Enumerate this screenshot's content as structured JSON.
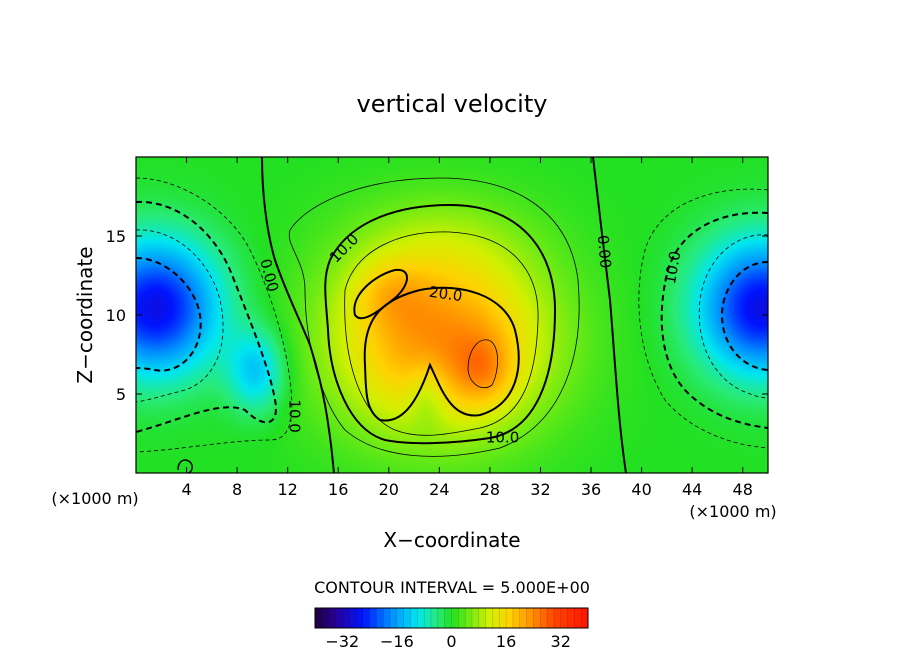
{
  "chart_data": {
    "type": "contour",
    "title": "vertical velocity",
    "xlabel": "X−coordinate",
    "ylabel": "Z−coordinate",
    "x_unit_left": "(×1000 m)",
    "x_unit_right": "(×1000 m)",
    "xlim": [
      0,
      50
    ],
    "ylim": [
      0,
      20
    ],
    "xticks": [
      4,
      8,
      12,
      16,
      20,
      24,
      28,
      32,
      36,
      40,
      44,
      48
    ],
    "yticks": [
      5,
      10,
      15
    ],
    "contour_interval_text": "CONTOUR INTERVAL = 5.000E+00",
    "contour_interval": 5.0,
    "contour_labels": [
      {
        "x": 10.5,
        "z": 12.5,
        "text": "0.00",
        "rotate": 75
      },
      {
        "x": 37.0,
        "z": 14.0,
        "text": "0.00",
        "rotate": 85
      },
      {
        "x": 16.5,
        "z": 14.2,
        "text": "10.0",
        "rotate": -45
      },
      {
        "x": 24.5,
        "z": 11.3,
        "text": "20.0",
        "rotate": 8
      },
      {
        "x": 29.0,
        "z": 2.2,
        "text": "10.0",
        "rotate": 0
      },
      {
        "x": 12.5,
        "z": 3.6,
        "text": "10.0",
        "rotate": 90
      },
      {
        "x": 42.5,
        "z": 13.0,
        "text": "10.0",
        "rotate": -80
      }
    ],
    "colorbar": {
      "range": [
        -40,
        40
      ],
      "ticks": [
        -32,
        -16,
        0,
        16,
        32
      ],
      "tick_labels": [
        "−32",
        "−16",
        "0",
        "16",
        "32"
      ]
    },
    "colors": {
      "negative_max": "#1565ff",
      "zero": "#22e022",
      "positive_max": "#ff4a00"
    }
  }
}
